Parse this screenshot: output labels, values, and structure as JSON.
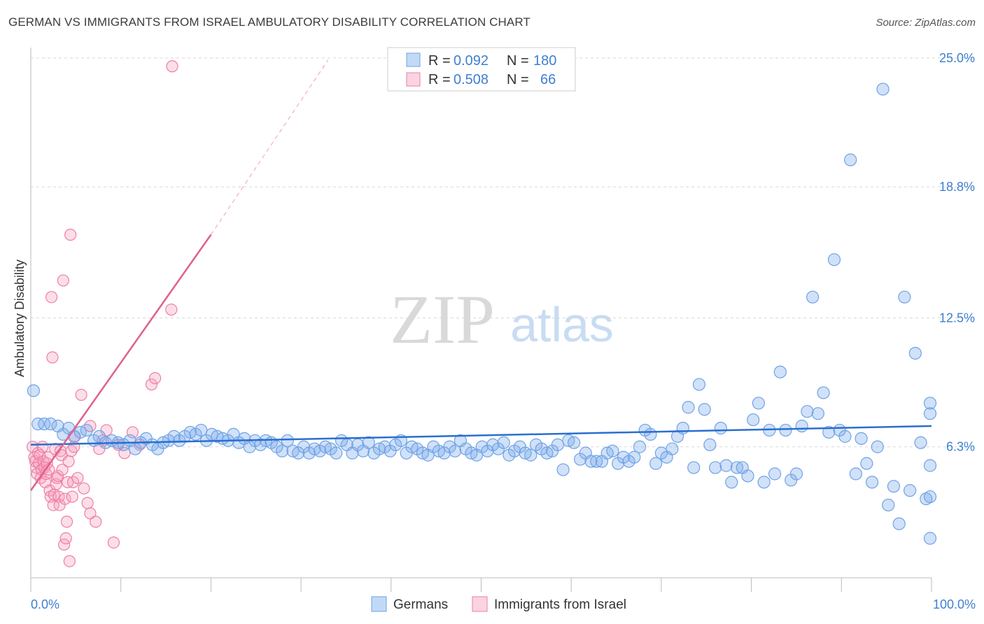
{
  "title": "GERMAN VS IMMIGRANTS FROM ISRAEL AMBULATORY DISABILITY CORRELATION CHART",
  "source": "Source: ZipAtlas.com",
  "watermark": {
    "zip": "ZIP",
    "atlas": "atlas"
  },
  "colors": {
    "blue": "#6fa3e6",
    "blue_fill": "rgba(120,170,235,0.35)",
    "blue_line": "#2a6fcf",
    "pink": "#ee7fa3",
    "pink_fill": "rgba(245,160,190,0.35)",
    "pink_line": "#e0608c",
    "axis_text": "#3f7fd0",
    "grid": "#d8d8d8"
  },
  "legend": {
    "rows": [
      {
        "r_label": "R =",
        "r_value": "0.092",
        "n_label": "N =",
        "n_value": "180",
        "series": "blue"
      },
      {
        "r_label": "R =",
        "r_value": "0.508",
        "n_label": "N =",
        "n_value": "66",
        "series": "pink"
      }
    ]
  },
  "bottom_legend": [
    "Germans",
    "Immigrants from Israel"
  ],
  "chart_data": {
    "type": "scatter",
    "title": "GERMAN VS IMMIGRANTS FROM ISRAEL AMBULATORY DISABILITY CORRELATION CHART",
    "xlabel": "",
    "ylabel": "Ambulatory Disability",
    "xlim": [
      0,
      100
    ],
    "ylim": [
      0,
      25.5
    ],
    "x_tick_labels": [
      "0.0%",
      "100.0%"
    ],
    "y_ticks": [
      6.3,
      12.5,
      18.8,
      25.0
    ],
    "y_tick_labels": [
      "6.3%",
      "12.5%",
      "18.8%",
      "25.0%"
    ],
    "grid": "horizontal dashed",
    "legend_position": "top-center",
    "series": [
      {
        "name": "Germans",
        "color": "blue",
        "r": 0.092,
        "n": 180,
        "trend": {
          "x": [
            0,
            100
          ],
          "y": [
            6.4,
            7.3
          ]
        },
        "points": [
          [
            0.3,
            9.0
          ],
          [
            0.8,
            7.4
          ],
          [
            1.5,
            7.4
          ],
          [
            2.2,
            7.4
          ],
          [
            3.0,
            7.3
          ],
          [
            3.6,
            6.9
          ],
          [
            4.2,
            7.2
          ],
          [
            4.8,
            6.8
          ],
          [
            5.5,
            7.0
          ],
          [
            6.2,
            7.1
          ],
          [
            7.0,
            6.6
          ],
          [
            7.6,
            6.8
          ],
          [
            8.3,
            6.5
          ],
          [
            9.0,
            6.6
          ],
          [
            9.7,
            6.5
          ],
          [
            10.3,
            6.4
          ],
          [
            11.0,
            6.6
          ],
          [
            11.6,
            6.2
          ],
          [
            12.2,
            6.5
          ],
          [
            12.8,
            6.7
          ],
          [
            13.5,
            6.4
          ],
          [
            14.1,
            6.2
          ],
          [
            14.7,
            6.5
          ],
          [
            15.3,
            6.6
          ],
          [
            15.9,
            6.8
          ],
          [
            16.5,
            6.6
          ],
          [
            17.1,
            6.8
          ],
          [
            17.7,
            7.0
          ],
          [
            18.3,
            6.9
          ],
          [
            18.9,
            7.1
          ],
          [
            19.5,
            6.6
          ],
          [
            20.1,
            6.9
          ],
          [
            20.7,
            6.8
          ],
          [
            21.3,
            6.7
          ],
          [
            21.9,
            6.6
          ],
          [
            22.5,
            6.9
          ],
          [
            23.1,
            6.5
          ],
          [
            23.7,
            6.7
          ],
          [
            24.3,
            6.3
          ],
          [
            24.9,
            6.6
          ],
          [
            25.5,
            6.4
          ],
          [
            26.1,
            6.6
          ],
          [
            26.7,
            6.5
          ],
          [
            27.3,
            6.3
          ],
          [
            27.9,
            6.1
          ],
          [
            28.5,
            6.6
          ],
          [
            29.1,
            6.1
          ],
          [
            29.7,
            6.0
          ],
          [
            30.3,
            6.3
          ],
          [
            30.9,
            6.0
          ],
          [
            31.5,
            6.2
          ],
          [
            32.1,
            6.1
          ],
          [
            32.7,
            6.3
          ],
          [
            33.3,
            6.2
          ],
          [
            33.9,
            6.0
          ],
          [
            34.5,
            6.6
          ],
          [
            35.1,
            6.4
          ],
          [
            35.7,
            6.0
          ],
          [
            36.3,
            6.4
          ],
          [
            36.9,
            6.1
          ],
          [
            37.5,
            6.5
          ],
          [
            38.1,
            6.0
          ],
          [
            38.7,
            6.2
          ],
          [
            39.3,
            6.3
          ],
          [
            39.9,
            6.1
          ],
          [
            40.5,
            6.4
          ],
          [
            41.1,
            6.6
          ],
          [
            41.7,
            6.0
          ],
          [
            42.3,
            6.3
          ],
          [
            42.9,
            6.2
          ],
          [
            43.5,
            6.0
          ],
          [
            44.1,
            5.9
          ],
          [
            44.7,
            6.3
          ],
          [
            45.3,
            6.1
          ],
          [
            45.9,
            6.0
          ],
          [
            46.5,
            6.3
          ],
          [
            47.1,
            6.1
          ],
          [
            47.7,
            6.6
          ],
          [
            48.3,
            6.2
          ],
          [
            48.9,
            6.0
          ],
          [
            49.5,
            5.9
          ],
          [
            50.1,
            6.3
          ],
          [
            50.7,
            6.1
          ],
          [
            51.3,
            6.4
          ],
          [
            51.9,
            6.2
          ],
          [
            52.5,
            6.5
          ],
          [
            53.1,
            5.9
          ],
          [
            53.7,
            6.1
          ],
          [
            54.3,
            6.3
          ],
          [
            54.9,
            6.0
          ],
          [
            55.5,
            5.9
          ],
          [
            56.1,
            6.4
          ],
          [
            56.7,
            6.2
          ],
          [
            57.3,
            6.0
          ],
          [
            57.9,
            6.1
          ],
          [
            58.5,
            6.4
          ],
          [
            59.1,
            5.2
          ],
          [
            59.7,
            6.6
          ],
          [
            60.3,
            6.5
          ],
          [
            61.0,
            5.7
          ],
          [
            61.6,
            6.0
          ],
          [
            62.2,
            5.6
          ],
          [
            62.8,
            5.6
          ],
          [
            63.4,
            5.6
          ],
          [
            64.0,
            6.0
          ],
          [
            64.6,
            6.1
          ],
          [
            65.2,
            5.5
          ],
          [
            65.8,
            5.8
          ],
          [
            66.4,
            5.6
          ],
          [
            67.0,
            5.8
          ],
          [
            67.6,
            6.3
          ],
          [
            68.2,
            7.1
          ],
          [
            68.8,
            6.9
          ],
          [
            69.4,
            5.5
          ],
          [
            70.0,
            6.0
          ],
          [
            70.6,
            5.8
          ],
          [
            71.2,
            6.2
          ],
          [
            71.8,
            6.8
          ],
          [
            72.4,
            7.2
          ],
          [
            73.0,
            8.2
          ],
          [
            73.6,
            5.3
          ],
          [
            74.2,
            9.3
          ],
          [
            74.8,
            8.1
          ],
          [
            75.4,
            6.4
          ],
          [
            76.0,
            5.3
          ],
          [
            76.6,
            7.2
          ],
          [
            77.2,
            5.4
          ],
          [
            77.8,
            4.6
          ],
          [
            78.4,
            5.3
          ],
          [
            79.0,
            5.3
          ],
          [
            79.6,
            4.9
          ],
          [
            80.2,
            7.6
          ],
          [
            80.8,
            8.4
          ],
          [
            81.4,
            4.6
          ],
          [
            82.0,
            7.1
          ],
          [
            82.6,
            5.0
          ],
          [
            83.2,
            9.9
          ],
          [
            83.8,
            7.1
          ],
          [
            84.4,
            4.7
          ],
          [
            85.0,
            5.0
          ],
          [
            85.6,
            7.3
          ],
          [
            86.2,
            8.0
          ],
          [
            86.8,
            13.5
          ],
          [
            87.4,
            7.9
          ],
          [
            88.0,
            8.9
          ],
          [
            88.6,
            7.0
          ],
          [
            89.2,
            15.3
          ],
          [
            89.8,
            7.1
          ],
          [
            90.4,
            6.8
          ],
          [
            91.0,
            20.1
          ],
          [
            91.6,
            5.0
          ],
          [
            92.2,
            6.7
          ],
          [
            92.8,
            5.5
          ],
          [
            93.4,
            4.6
          ],
          [
            94.0,
            6.3
          ],
          [
            94.6,
            23.5
          ],
          [
            95.2,
            3.5
          ],
          [
            95.8,
            4.4
          ],
          [
            96.4,
            2.6
          ],
          [
            97.0,
            13.5
          ],
          [
            97.6,
            4.2
          ],
          [
            98.2,
            10.8
          ],
          [
            98.8,
            6.5
          ],
          [
            99.4,
            3.8
          ],
          [
            100.0,
            7.9
          ],
          [
            100.6,
            1.9
          ],
          [
            101.2,
            3.9
          ],
          [
            101.8,
            5.4
          ],
          [
            102.4,
            8.4
          ]
        ]
      },
      {
        "name": "Immigrants from Israel",
        "color": "pink",
        "r": 0.508,
        "n": 66,
        "trend": {
          "x": [
            0,
            20
          ],
          "y": [
            4.2,
            16.5
          ]
        },
        "trend_extension": {
          "x": [
            20,
            33
          ],
          "y": [
            16.5,
            24.9
          ]
        },
        "points": [
          [
            0.2,
            6.3
          ],
          [
            0.4,
            5.8
          ],
          [
            0.5,
            5.6
          ],
          [
            0.6,
            5.3
          ],
          [
            0.7,
            5.0
          ],
          [
            0.8,
            6.0
          ],
          [
            0.9,
            5.5
          ],
          [
            1.0,
            5.9
          ],
          [
            1.1,
            4.8
          ],
          [
            1.2,
            5.2
          ],
          [
            1.3,
            6.3
          ],
          [
            1.4,
            5.6
          ],
          [
            1.5,
            5.3
          ],
          [
            1.6,
            4.6
          ],
          [
            1.7,
            5.0
          ],
          [
            1.8,
            5.5
          ],
          [
            1.9,
            5.8
          ],
          [
            2.0,
            5.2
          ],
          [
            2.1,
            4.2
          ],
          [
            2.2,
            3.9
          ],
          [
            2.3,
            13.5
          ],
          [
            2.4,
            10.6
          ],
          [
            2.5,
            3.5
          ],
          [
            2.6,
            4.0
          ],
          [
            2.7,
            6.2
          ],
          [
            2.8,
            4.5
          ],
          [
            2.9,
            4.8
          ],
          [
            3.0,
            4.9
          ],
          [
            3.1,
            3.9
          ],
          [
            3.2,
            3.5
          ],
          [
            3.3,
            6.1
          ],
          [
            3.4,
            5.9
          ],
          [
            3.5,
            5.2
          ],
          [
            3.6,
            14.3
          ],
          [
            3.7,
            1.6
          ],
          [
            3.8,
            3.8
          ],
          [
            3.9,
            1.9
          ],
          [
            4.0,
            2.7
          ],
          [
            4.1,
            4.6
          ],
          [
            4.2,
            5.6
          ],
          [
            4.3,
            0.8
          ],
          [
            4.4,
            16.5
          ],
          [
            4.5,
            6.1
          ],
          [
            4.6,
            3.9
          ],
          [
            4.7,
            4.6
          ],
          [
            4.8,
            6.3
          ],
          [
            4.9,
            6.8
          ],
          [
            5.2,
            4.8
          ],
          [
            5.6,
            8.8
          ],
          [
            5.9,
            4.3
          ],
          [
            6.3,
            3.6
          ],
          [
            6.6,
            3.1
          ],
          [
            7.2,
            2.7
          ],
          [
            7.6,
            6.2
          ],
          [
            8.4,
            7.1
          ],
          [
            9.2,
            1.7
          ],
          [
            10.4,
            6.0
          ],
          [
            11.3,
            7.0
          ],
          [
            12.1,
            6.4
          ],
          [
            13.4,
            9.3
          ],
          [
            13.8,
            9.6
          ],
          [
            15.6,
            12.9
          ],
          [
            6.6,
            7.3
          ],
          [
            8.0,
            6.6
          ],
          [
            9.7,
            6.4
          ],
          [
            15.7,
            24.6
          ]
        ]
      }
    ]
  }
}
